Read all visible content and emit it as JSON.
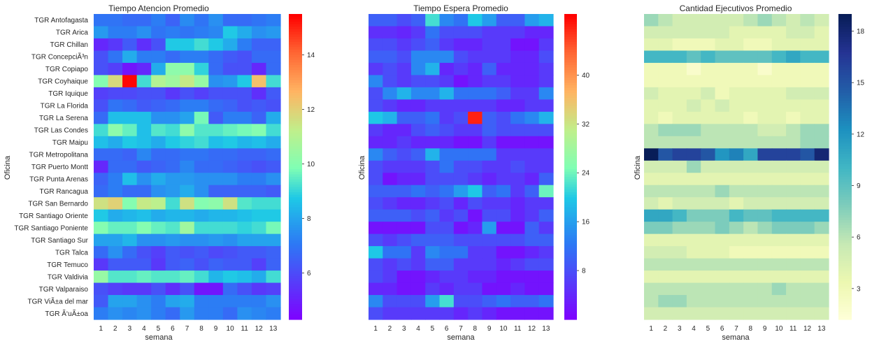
{
  "chart_data": [
    {
      "type": "heatmap",
      "title": "Tiempo Atencion Promedio",
      "xlabel": "semana",
      "ylabel": "Oficina",
      "colormap": "rainbow",
      "vmin": 4.3,
      "vmax": 15.5,
      "colorbar_ticks": [
        6,
        8,
        10,
        12,
        14
      ],
      "show_y_tick_labels": true,
      "columns": [
        "1",
        "2",
        "3",
        "4",
        "5",
        "6",
        "7",
        "8",
        "9",
        "10",
        "11",
        "12",
        "13"
      ],
      "rows": [
        "TGR Antofagasta",
        "TGR Arica",
        "TGR Chillan",
        "TGR ConcepciÃ³n",
        "TGR Copiapo",
        "TGR Coyhaique",
        "TGR Iquique",
        "TGR La Florida",
        "TGR La Serena",
        "TGR Las Condes",
        "TGR Maipu",
        "TGR Metropolitana",
        "TGR Puerto Montt",
        "TGR Punta Arenas",
        "TGR Rancagua",
        "TGR San Bernardo",
        "TGR Santiago Oriente",
        "TGR Santiago Poniente",
        "TGR Santiago Sur",
        "TGR Talca",
        "TGR Temuco",
        "TGR Valdivia",
        "TGR Valparaiso",
        "TGR ViÃ±a del mar",
        "TGR Ã‘uÃ±oa"
      ],
      "values": [
        [
          7,
          7,
          6.8,
          6.8,
          7.2,
          6.6,
          7.5,
          7,
          7.6,
          6.8,
          6.8,
          7,
          7.2
        ],
        [
          7.8,
          7.2,
          7.2,
          7.6,
          7,
          7.2,
          7,
          7.2,
          7.4,
          8.8,
          8.2,
          7.6,
          7.8
        ],
        [
          5.2,
          5.6,
          6.4,
          5.4,
          6.2,
          8.8,
          8.8,
          9.2,
          8.8,
          8.2,
          7.2,
          6.6,
          6.6
        ],
        [
          6.2,
          7,
          8.2,
          7.2,
          7.2,
          6.8,
          7.2,
          7.2,
          6.8,
          6.4,
          6.2,
          6.8,
          6.8
        ],
        [
          6.2,
          5.8,
          4.8,
          5.2,
          8.2,
          10.2,
          10.2,
          9,
          6.8,
          6.2,
          6.2,
          5.2,
          6.8
        ],
        [
          10,
          11.8,
          15.4,
          9.2,
          11,
          10.6,
          11.4,
          10.4,
          7.6,
          7.8,
          8.8,
          12.4,
          9.2
        ],
        [
          5.8,
          6,
          6,
          6.2,
          6.2,
          5.6,
          6.2,
          5.8,
          6.2,
          6.2,
          6.2,
          5.4,
          6.4
        ],
        [
          6.2,
          7,
          6.8,
          6.4,
          6.6,
          6.8,
          7.2,
          7.2,
          6.8,
          6.6,
          6.2,
          6.4,
          6.2
        ],
        [
          6.8,
          8.6,
          8.6,
          8.6,
          7.6,
          7.6,
          8,
          9.8,
          6.4,
          7.2,
          7.2,
          6.6,
          8.2
        ],
        [
          9.2,
          10.2,
          9.6,
          8.6,
          9.4,
          9.2,
          10.2,
          9.4,
          9.4,
          9.6,
          9.8,
          10,
          9.2
        ],
        [
          8.6,
          8.2,
          8.8,
          8.6,
          8.2,
          8.8,
          9,
          9.2,
          8.6,
          8.8,
          8.4,
          8.6,
          8.2
        ],
        [
          6.8,
          6.8,
          6.6,
          7.4,
          6.8,
          6.8,
          7,
          7,
          6.8,
          6.8,
          6.6,
          6.6,
          6.8
        ],
        [
          5.2,
          6.8,
          6.8,
          6.4,
          6.6,
          6.8,
          7.4,
          6.8,
          6.8,
          6.6,
          6.4,
          6.2,
          6.4
        ],
        [
          6.6,
          7.2,
          8.6,
          7.6,
          8.2,
          7.8,
          7.8,
          7.6,
          7.6,
          7.6,
          7.2,
          7.2,
          7.6
        ],
        [
          6.8,
          7.2,
          6.8,
          6.8,
          7.6,
          7.8,
          8.2,
          7.6,
          6.6,
          6.6,
          6.6,
          6.6,
          6.4
        ],
        [
          11.6,
          12,
          10,
          11.4,
          11.2,
          9.2,
          11.6,
          10,
          10.2,
          11.6,
          9.4,
          9.2,
          9.2
        ],
        [
          8.8,
          8.2,
          8.4,
          8.6,
          8.2,
          8.4,
          8.4,
          8.2,
          8.4,
          8.4,
          8.6,
          8.8,
          8.8
        ],
        [
          10,
          9.6,
          9.6,
          10,
          9.6,
          9.4,
          10.6,
          9.2,
          9.2,
          9.2,
          9,
          9.2,
          9.8
        ],
        [
          8,
          8,
          8.4,
          7.6,
          7.6,
          7.8,
          7.6,
          7.6,
          7.8,
          7.6,
          8,
          8,
          8
        ],
        [
          6.8,
          7.6,
          6.8,
          6.2,
          5.8,
          6.4,
          6.2,
          6.4,
          6,
          6.2,
          6.4,
          6.4,
          6.6
        ],
        [
          5.6,
          6.4,
          6.4,
          6.4,
          5.6,
          6.4,
          6.6,
          6.2,
          6.6,
          6.4,
          6.4,
          5.8,
          6.6
        ],
        [
          10.4,
          9.4,
          9.4,
          9.6,
          9.4,
          9.4,
          9.6,
          9.2,
          8.4,
          8.8,
          8.6,
          8.2,
          9.2
        ],
        [
          6.2,
          5.8,
          5.6,
          5.6,
          6.2,
          5.4,
          6.2,
          4.8,
          4.8,
          6.8,
          6.2,
          5.6,
          5.8
        ],
        [
          6.4,
          8,
          8,
          7.6,
          7.2,
          8,
          8.2,
          7.2,
          7.2,
          7.2,
          7.2,
          7.2,
          7.6
        ],
        [
          7.2,
          7.6,
          7.4,
          7.6,
          7.2,
          6.8,
          7.8,
          7.2,
          7.2,
          6.8,
          7.6,
          7.4,
          7.2
        ]
      ]
    },
    {
      "type": "heatmap",
      "title": "Tiempo Espera Promedio",
      "xlabel": "semana",
      "ylabel": "Oficina",
      "colormap": "rainbow",
      "vmin": 0,
      "vmax": 50,
      "colorbar_ticks": [
        8,
        16,
        24,
        32,
        40
      ],
      "show_y_tick_labels": false,
      "columns": [
        "1",
        "2",
        "3",
        "4",
        "5",
        "6",
        "7",
        "8",
        "9",
        "10",
        "11",
        "12",
        "13"
      ],
      "rows": [
        "TGR Antofagasta",
        "TGR Arica",
        "TGR Chillan",
        "TGR ConcepciÃ³n",
        "TGR Copiapo",
        "TGR Coyhaique",
        "TGR Iquique",
        "TGR La Florida",
        "TGR La Serena",
        "TGR Las Condes",
        "TGR Maipu",
        "TGR Metropolitana",
        "TGR Puerto Montt",
        "TGR Punta Arenas",
        "TGR Rancagua",
        "TGR San Bernardo",
        "TGR Santiago Oriente",
        "TGR Santiago Poniente",
        "TGR Santiago Sur",
        "TGR Talca",
        "TGR Temuco",
        "TGR Valdivia",
        "TGR Valparaiso",
        "TGR ViÃ±a del mar",
        "TGR Ã‘uÃ±oa"
      ],
      "values": [
        [
          10,
          10,
          8,
          10,
          22,
          14,
          12,
          20,
          16,
          10,
          10,
          16,
          18
        ],
        [
          5,
          5,
          4,
          6,
          12,
          8,
          8,
          8,
          6,
          6,
          6,
          4,
          4
        ],
        [
          8,
          8,
          6,
          8,
          10,
          6,
          4,
          4,
          6,
          6,
          2,
          2,
          6
        ],
        [
          10,
          10,
          8,
          14,
          14,
          14,
          8,
          6,
          6,
          6,
          4,
          4,
          8
        ],
        [
          6,
          8,
          6,
          14,
          18,
          4,
          6,
          4,
          10,
          4,
          4,
          4,
          6
        ],
        [
          14,
          8,
          6,
          8,
          8,
          6,
          2,
          4,
          6,
          6,
          4,
          4,
          6
        ],
        [
          8,
          14,
          18,
          14,
          14,
          18,
          12,
          12,
          12,
          10,
          6,
          6,
          14
        ],
        [
          8,
          6,
          4,
          4,
          6,
          6,
          6,
          6,
          6,
          4,
          4,
          6,
          6
        ],
        [
          20,
          18,
          10,
          10,
          12,
          6,
          8,
          48,
          10,
          8,
          12,
          14,
          18
        ],
        [
          6,
          4,
          4,
          8,
          10,
          8,
          6,
          6,
          10,
          8,
          8,
          8,
          8
        ],
        [
          4,
          4,
          6,
          4,
          4,
          4,
          2,
          2,
          6,
          2,
          2,
          2,
          2
        ],
        [
          14,
          10,
          8,
          10,
          18,
          12,
          12,
          12,
          12,
          6,
          6,
          6,
          6
        ],
        [
          8,
          6,
          6,
          6,
          8,
          12,
          8,
          8,
          6,
          6,
          8,
          6,
          6
        ],
        [
          8,
          2,
          4,
          4,
          8,
          8,
          8,
          6,
          4,
          6,
          6,
          4,
          10
        ],
        [
          10,
          10,
          10,
          12,
          10,
          12,
          16,
          20,
          10,
          12,
          6,
          10,
          24
        ],
        [
          8,
          6,
          4,
          4,
          6,
          8,
          4,
          8,
          6,
          6,
          4,
          6,
          6
        ],
        [
          10,
          10,
          10,
          8,
          10,
          6,
          8,
          2,
          8,
          8,
          4,
          6,
          10
        ],
        [
          2,
          2,
          2,
          2,
          8,
          8,
          2,
          4,
          16,
          2,
          2,
          10,
          6
        ],
        [
          8,
          6,
          8,
          10,
          10,
          10,
          8,
          8,
          8,
          8,
          8,
          10,
          10
        ],
        [
          20,
          12,
          12,
          6,
          14,
          12,
          12,
          6,
          6,
          2,
          2,
          4,
          6
        ],
        [
          8,
          6,
          8,
          6,
          10,
          10,
          6,
          6,
          6,
          4,
          6,
          8,
          8
        ],
        [
          8,
          6,
          2,
          2,
          4,
          6,
          6,
          4,
          4,
          2,
          2,
          2,
          2
        ],
        [
          4,
          4,
          2,
          2,
          6,
          4,
          6,
          6,
          2,
          2,
          4,
          2,
          2
        ],
        [
          14,
          8,
          8,
          8,
          16,
          22,
          8,
          8,
          10,
          12,
          10,
          10,
          12
        ],
        [
          8,
          6,
          6,
          6,
          6,
          6,
          4,
          6,
          4,
          2,
          2,
          2,
          2
        ]
      ]
    },
    {
      "type": "heatmap",
      "title": "Cantidad Ejecutivos Promedio",
      "xlabel": "semana",
      "ylabel": "Oficina",
      "colormap": "YlGnBu",
      "vmin": 1.2,
      "vmax": 19,
      "colorbar_ticks": [
        3,
        6,
        9,
        12,
        15,
        18
      ],
      "show_y_tick_labels": false,
      "columns": [
        "1",
        "2",
        "3",
        "4",
        "5",
        "6",
        "7",
        "8",
        "9",
        "10",
        "11",
        "12",
        "13"
      ],
      "rows": [
        "TGR Antofagasta",
        "TGR Arica",
        "TGR Chillan",
        "TGR ConcepciÃ³n",
        "TGR Copiapo",
        "TGR Coyhaique",
        "TGR Iquique",
        "TGR La Florida",
        "TGR La Serena",
        "TGR Las Condes",
        "TGR Maipu",
        "TGR Metropolitana",
        "TGR Puerto Montt",
        "TGR Punta Arenas",
        "TGR Rancagua",
        "TGR San Bernardo",
        "TGR Santiago Oriente",
        "TGR Santiago Poniente",
        "TGR Santiago Sur",
        "TGR Talca",
        "TGR Temuco",
        "TGR Valdivia",
        "TGR Valparaiso",
        "TGR ViÃ±a del mar",
        "TGR Ã‘uÃ±oa"
      ],
      "values": [
        [
          7,
          6,
          5,
          5,
          5,
          5,
          5,
          6,
          7,
          6,
          5,
          6,
          5
        ],
        [
          5,
          5,
          5,
          5,
          5,
          5,
          4,
          4,
          4,
          4,
          5,
          5,
          4
        ],
        [
          4,
          4,
          3,
          3,
          3,
          4,
          4,
          3,
          3,
          4,
          4,
          4,
          4
        ],
        [
          10,
          10,
          10,
          9,
          10,
          9,
          9,
          9,
          9,
          10,
          11,
          10,
          10
        ],
        [
          3,
          3,
          3,
          2,
          3,
          3,
          3,
          3,
          2,
          3,
          3,
          3,
          3
        ],
        [
          3,
          3,
          3,
          3,
          3,
          3,
          3,
          3,
          3,
          3,
          3,
          3,
          3
        ],
        [
          5,
          4,
          4,
          4,
          5,
          3,
          4,
          4,
          4,
          4,
          5,
          5,
          5
        ],
        [
          4,
          4,
          4,
          5,
          4,
          5,
          4,
          4,
          4,
          4,
          4,
          4,
          4
        ],
        [
          4,
          3,
          4,
          4,
          4,
          4,
          4,
          3,
          4,
          4,
          3,
          4,
          4
        ],
        [
          6,
          7,
          7,
          7,
          6,
          6,
          6,
          6,
          5,
          5,
          6,
          7,
          7
        ],
        [
          6,
          6,
          6,
          6,
          6,
          6,
          6,
          6,
          6,
          6,
          6,
          7,
          7
        ],
        [
          19,
          15,
          16,
          16,
          15,
          12,
          13,
          11,
          16,
          16,
          16,
          15,
          18
        ],
        [
          5,
          5,
          5,
          7,
          5,
          5,
          5,
          5,
          5,
          5,
          5,
          5,
          5
        ],
        [
          4,
          4,
          4,
          4,
          4,
          4,
          4,
          4,
          4,
          4,
          4,
          4,
          4
        ],
        [
          6,
          6,
          6,
          6,
          6,
          7,
          6,
          6,
          6,
          6,
          6,
          6,
          6
        ],
        [
          5,
          4,
          5,
          5,
          5,
          5,
          4,
          5,
          5,
          5,
          5,
          5,
          5
        ],
        [
          11,
          11,
          10,
          8,
          8,
          8,
          10,
          9,
          9,
          10,
          10,
          10,
          10
        ],
        [
          8,
          8,
          7,
          7,
          7,
          8,
          7,
          6,
          7,
          8,
          8,
          8,
          7
        ],
        [
          4,
          4,
          4,
          4,
          4,
          4,
          4,
          4,
          4,
          4,
          4,
          4,
          4
        ],
        [
          5,
          5,
          5,
          4,
          4,
          4,
          3,
          3,
          3,
          3,
          3,
          3,
          3
        ],
        [
          6,
          6,
          6,
          6,
          6,
          6,
          6,
          6,
          6,
          6,
          6,
          6,
          6
        ],
        [
          4,
          4,
          4,
          4,
          4,
          4,
          4,
          4,
          4,
          4,
          4,
          4,
          4
        ],
        [
          6,
          6,
          6,
          6,
          6,
          6,
          6,
          6,
          6,
          7,
          6,
          6,
          6
        ],
        [
          6,
          7,
          7,
          6,
          6,
          6,
          6,
          6,
          6,
          6,
          6,
          6,
          6
        ],
        [
          5,
          5,
          5,
          5,
          5,
          5,
          5,
          5,
          5,
          5,
          5,
          5,
          5
        ]
      ]
    }
  ]
}
